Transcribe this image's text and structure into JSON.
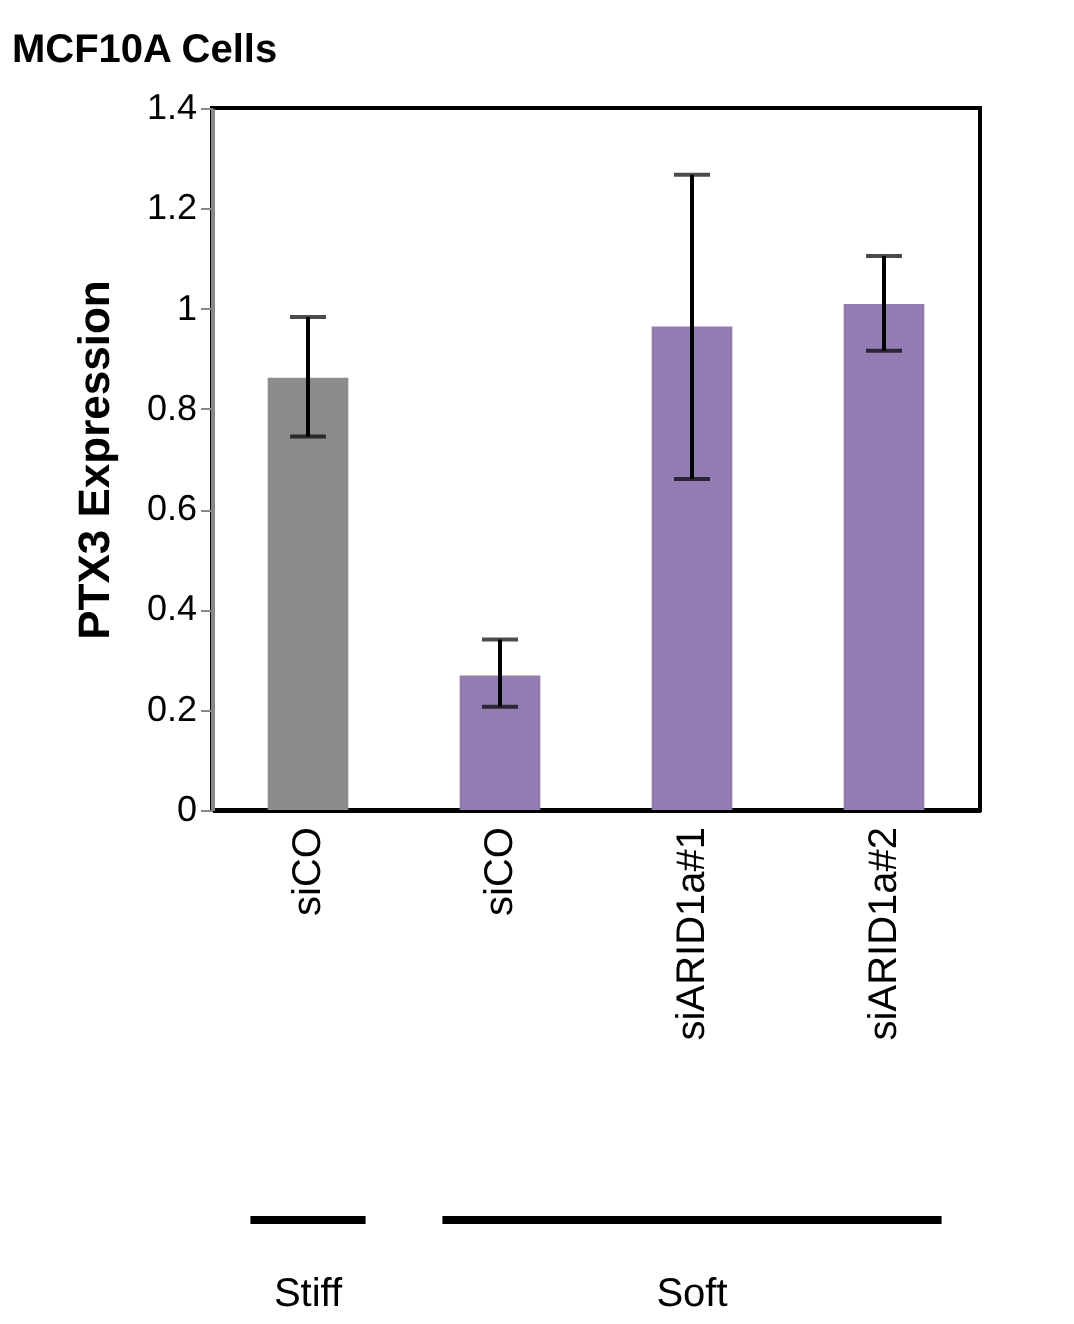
{
  "chart_data": {
    "type": "bar",
    "title": "MCF10A Cells",
    "ylabel": "PTX3 Expression",
    "categories": [
      "siCO",
      "siCO",
      "siARID1a#1",
      "siARID1a#2"
    ],
    "values": [
      0.862,
      0.268,
      0.964,
      1.009
    ],
    "colors": [
      "#8c8c8c",
      "#937cb1",
      "#937cb1",
      "#937cb1"
    ],
    "errors": [
      [
        0.745,
        0.983
      ],
      [
        0.206,
        0.34
      ],
      [
        0.66,
        1.267
      ],
      [
        0.916,
        1.105
      ]
    ],
    "ylim": [
      0,
      1.4
    ],
    "yticks": [
      0,
      0.2,
      0.4,
      0.6,
      0.8,
      1,
      1.2,
      1.4
    ],
    "grid": false,
    "annotations": [
      "Stiff",
      "Soft"
    ]
  }
}
